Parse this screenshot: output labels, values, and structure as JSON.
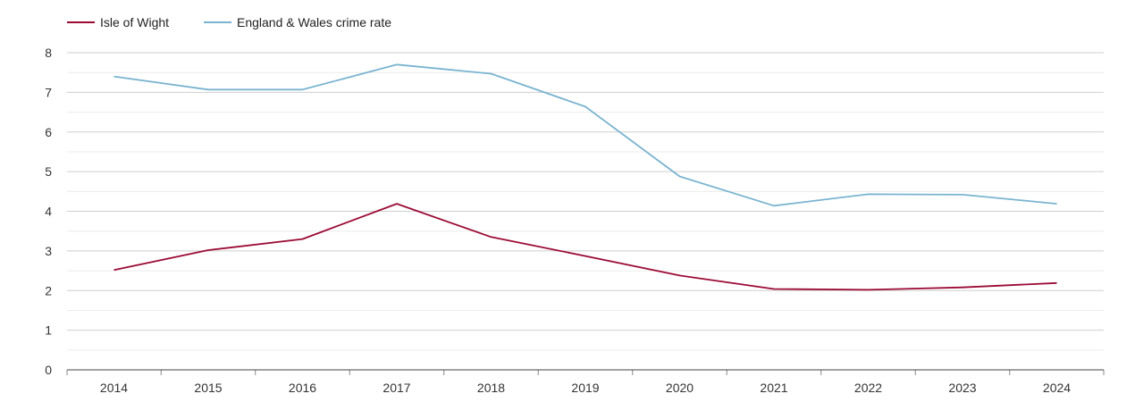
{
  "chart_data": {
    "type": "line",
    "title": "",
    "xlabel": "",
    "ylabel": "",
    "x": [
      "2014",
      "2015",
      "2016",
      "2017",
      "2018",
      "2019",
      "2020",
      "2021",
      "2022",
      "2023",
      "2024"
    ],
    "ylim": [
      0,
      8
    ],
    "yticks": [
      "0",
      "1",
      "2",
      "3",
      "4",
      "5",
      "6",
      "7",
      "8"
    ],
    "grid": true,
    "legend": "top-left",
    "series": [
      {
        "name": "Isle of Wight",
        "color": "#9b0a35",
        "values": [
          2.52,
          3.02,
          3.3,
          4.19,
          3.35,
          2.87,
          2.38,
          2.04,
          2.02,
          2.08,
          2.19
        ]
      },
      {
        "name": "England & Wales crime rate",
        "color": "#7ab4d0",
        "values": [
          7.4,
          7.07,
          7.07,
          7.7,
          7.47,
          6.64,
          4.88,
          4.14,
          4.43,
          4.42,
          4.19
        ]
      }
    ]
  }
}
